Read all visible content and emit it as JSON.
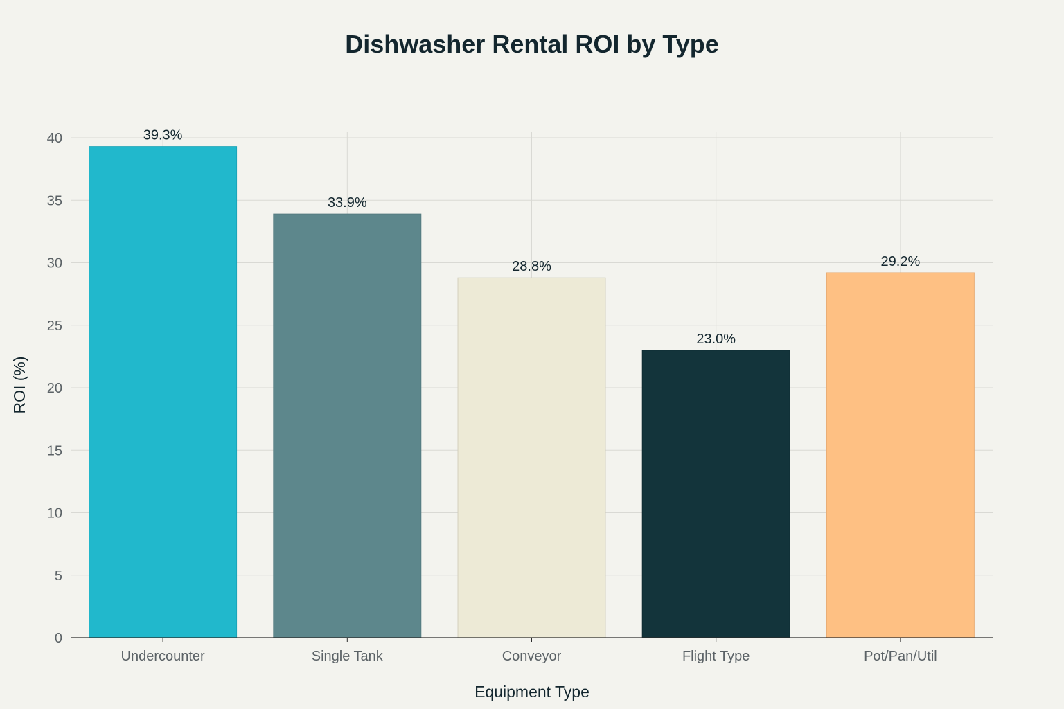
{
  "chart_data": {
    "type": "bar",
    "title": "Dishwasher Rental ROI by Type",
    "xlabel": "Equipment Type",
    "ylabel": "ROI (%)",
    "categories": [
      "Undercounter",
      "Single Tank",
      "Conveyor",
      "Flight Type",
      "Pot/Pan/Util"
    ],
    "values": [
      39.3,
      33.9,
      28.8,
      23.0,
      29.2
    ],
    "data_labels": [
      "39.3%",
      "33.9%",
      "28.8%",
      "23.0%",
      "29.2%"
    ],
    "colors": [
      "#21b8cc",
      "#5d878c",
      "#edead6",
      "#13343b",
      "#fec083"
    ],
    "border_colors": [
      "#1aa5b8",
      "#557c81",
      "#d3d0bd",
      "#0f2c32",
      "#e8ad75"
    ],
    "yticks": [
      0,
      5,
      10,
      15,
      20,
      25,
      30,
      35,
      40
    ],
    "ylim": [
      0,
      40.5
    ],
    "grid": true
  }
}
